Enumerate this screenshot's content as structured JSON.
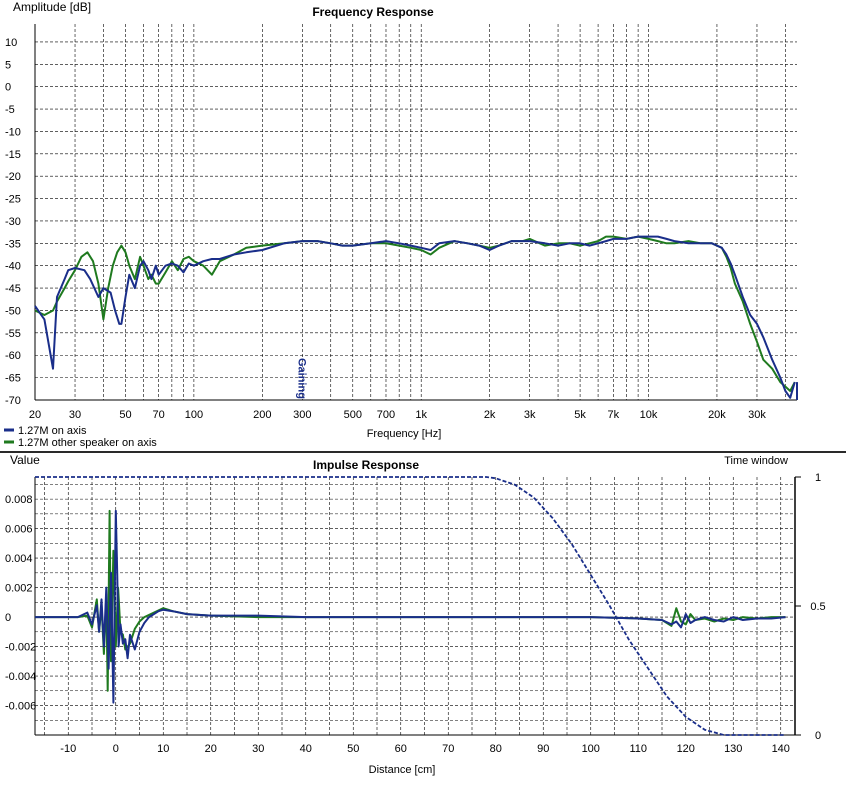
{
  "colors": {
    "series_a": "#1a2e8a",
    "series_b": "#1f7a1f",
    "grid": "#000000",
    "background": "#ffffff",
    "separator": "#2a2a2a"
  },
  "chart_data": [
    {
      "type": "line",
      "title": "Frequency Response",
      "ylabel": "Amplitude [dB]",
      "xlabel": "Frequency [Hz]",
      "x_scale": "log",
      "xlim": [
        20,
        45000
      ],
      "ylim": [
        -70,
        14
      ],
      "grid": true,
      "legend_position": "bottom-left",
      "y_ticks": [
        10,
        5,
        0,
        -5,
        -10,
        -15,
        -20,
        -25,
        -30,
        -35,
        -40,
        -45,
        -50,
        -55,
        -60,
        -65,
        -70
      ],
      "x_ticks": [
        {
          "value": 20,
          "label": "20"
        },
        {
          "value": 30,
          "label": "30"
        },
        {
          "value": 50,
          "label": "50"
        },
        {
          "value": 70,
          "label": "70"
        },
        {
          "value": 100,
          "label": "100"
        },
        {
          "value": 200,
          "label": "200"
        },
        {
          "value": 300,
          "label": "300"
        },
        {
          "value": 500,
          "label": "500"
        },
        {
          "value": 700,
          "label": "700"
        },
        {
          "value": 1000,
          "label": "1k"
        },
        {
          "value": 2000,
          "label": "2k"
        },
        {
          "value": 3000,
          "label": "3k"
        },
        {
          "value": 5000,
          "label": "5k"
        },
        {
          "value": 7000,
          "label": "7k"
        },
        {
          "value": 10000,
          "label": "10k"
        },
        {
          "value": 20000,
          "label": "20k"
        },
        {
          "value": 30000,
          "label": "30k"
        }
      ],
      "annotation": {
        "text": "Gaining",
        "x": 300,
        "y": -70
      },
      "series": [
        {
          "name": "1.27M on axis",
          "color_key": "series_a",
          "x": [
            20,
            22,
            24,
            25,
            27,
            28,
            30,
            33,
            35,
            38,
            40,
            43,
            45,
            47,
            48,
            50,
            52,
            55,
            58,
            60,
            63,
            65,
            68,
            70,
            75,
            80,
            85,
            90,
            95,
            100,
            110,
            120,
            130,
            150,
            170,
            200,
            250,
            300,
            350,
            400,
            450,
            500,
            600,
            700,
            800,
            900,
            1000,
            1100,
            1200,
            1400,
            1600,
            1800,
            2000,
            2200,
            2500,
            2800,
            3000,
            3500,
            4000,
            4500,
            5000,
            5500,
            6000,
            6500,
            7000,
            8000,
            9000,
            10000,
            11000,
            12000,
            13000,
            15000,
            17000,
            19000,
            20000,
            21000,
            22000,
            23000,
            24000,
            26000,
            28000,
            30000,
            32000,
            35000,
            38000,
            40000,
            42000,
            44000
          ],
          "y": [
            -49,
            -52,
            -63,
            -47,
            -43,
            -41,
            -40.5,
            -41,
            -43,
            -47,
            -45,
            -46,
            -50,
            -53,
            -53,
            -47,
            -42,
            -45,
            -40,
            -39,
            -41,
            -43,
            -40,
            -42,
            -40,
            -39.5,
            -40,
            -41.5,
            -39.5,
            -40,
            -39,
            -38.5,
            -38.5,
            -37.5,
            -37,
            -36.5,
            -35,
            -34.5,
            -34.5,
            -35,
            -35.5,
            -35.5,
            -35,
            -34.5,
            -35,
            -35.5,
            -36,
            -36.5,
            -35,
            -34.5,
            -35,
            -35.5,
            -36.5,
            -35.5,
            -34.5,
            -34.5,
            -34.5,
            -35,
            -35.5,
            -35,
            -35,
            -35.5,
            -35,
            -34.5,
            -34,
            -34,
            -33.5,
            -33.5,
            -33.5,
            -34,
            -34.5,
            -35,
            -35,
            -35,
            -35.5,
            -36,
            -37.5,
            -39.5,
            -42,
            -47,
            -51,
            -53,
            -56,
            -61,
            -65,
            -68,
            -69.5,
            -66
          ]
        },
        {
          "name": "1.27M other speaker on axis",
          "color_key": "series_b",
          "x": [
            20,
            22,
            24,
            25,
            27,
            28,
            30,
            32,
            34,
            36,
            38,
            40,
            42,
            44,
            46,
            48,
            50,
            52,
            55,
            58,
            60,
            63,
            65,
            68,
            70,
            75,
            80,
            85,
            90,
            95,
            100,
            110,
            120,
            130,
            150,
            170,
            200,
            250,
            300,
            350,
            400,
            450,
            500,
            600,
            700,
            800,
            900,
            1000,
            1100,
            1200,
            1400,
            1600,
            1800,
            2000,
            2200,
            2500,
            2800,
            3000,
            3500,
            4000,
            4500,
            5000,
            5500,
            6000,
            6500,
            7000,
            8000,
            9000,
            10000,
            11000,
            12000,
            13000,
            15000,
            17000,
            19000,
            20000,
            21000,
            22000,
            23000,
            24000,
            26000,
            28000,
            30000,
            32000,
            35000,
            38000,
            40000,
            42000,
            44000
          ],
          "y": [
            -50,
            -51,
            -50,
            -48,
            -45,
            -43.5,
            -41,
            -38,
            -37,
            -39,
            -44,
            -52,
            -45,
            -40,
            -37,
            -35.5,
            -37,
            -40,
            -43,
            -38,
            -40,
            -43,
            -42,
            -44,
            -44,
            -41.5,
            -39,
            -41,
            -38.5,
            -38,
            -39,
            -40,
            -42,
            -39,
            -37.5,
            -36,
            -35.5,
            -35,
            -34.5,
            -34.5,
            -35,
            -35.5,
            -35.5,
            -35,
            -35,
            -35.5,
            -36,
            -36.5,
            -37.5,
            -36,
            -34.5,
            -35,
            -35.5,
            -36,
            -35.5,
            -34.5,
            -34.5,
            -34,
            -35.5,
            -35,
            -35,
            -35.5,
            -35,
            -34.5,
            -33.5,
            -33.5,
            -34,
            -33.5,
            -34,
            -34.5,
            -35,
            -35,
            -34.5,
            -35,
            -35,
            -35.5,
            -36,
            -38,
            -40.5,
            -44,
            -48,
            -53,
            -57,
            -61,
            -63,
            -66,
            -67,
            -68,
            -66
          ]
        }
      ],
      "vertical_marker": {
        "x": 45000,
        "y_from": -70,
        "y_to": -66
      }
    },
    {
      "type": "line",
      "title": "Impulse Response",
      "ylabel": "Value",
      "xlabel": "Distance [cm]",
      "y2label": "Time window",
      "xlim": [
        -17,
        143
      ],
      "ylim": [
        -0.008,
        0.0095
      ],
      "y2lim": [
        0,
        1
      ],
      "grid": true,
      "x_ticks": [
        -10,
        0,
        10,
        20,
        30,
        40,
        50,
        60,
        70,
        80,
        90,
        100,
        110,
        120,
        130,
        140
      ],
      "y_ticks": [
        {
          "value": 0.008,
          "label": "0.008"
        },
        {
          "value": 0.006,
          "label": "0.006"
        },
        {
          "value": 0.004,
          "label": "0.004"
        },
        {
          "value": 0.002,
          "label": "0.002"
        },
        {
          "value": 0,
          "label": "0"
        },
        {
          "value": -0.002,
          "label": "-0.002"
        },
        {
          "value": -0.004,
          "label": "-0.004"
        },
        {
          "value": -0.006,
          "label": "-0.006"
        }
      ],
      "y2_ticks": [
        {
          "value": 1,
          "label": "1"
        },
        {
          "value": 0.5,
          "label": "0.5"
        },
        {
          "value": 0,
          "label": "0"
        }
      ],
      "window_series": {
        "style": "dashed",
        "x": [
          -17,
          0,
          78,
          80,
          84,
          88,
          92,
          96,
          100,
          104,
          108,
          112,
          116,
          120,
          124,
          128,
          141
        ],
        "y": [
          1,
          1,
          1,
          0.995,
          0.97,
          0.92,
          0.84,
          0.74,
          0.62,
          0.5,
          0.37,
          0.26,
          0.15,
          0.07,
          0.02,
          0,
          0
        ]
      },
      "series": [
        {
          "color_key": "series_a",
          "x": [
            -17,
            -12,
            -8,
            -6,
            -5,
            -4,
            -3.5,
            -3,
            -2.5,
            -2,
            -1.5,
            -1,
            -0.5,
            0,
            0.3,
            0.6,
            1,
            1.5,
            2,
            2.5,
            3,
            4,
            5,
            6,
            7,
            8,
            9,
            10,
            12,
            15,
            20,
            30,
            40,
            60,
            80,
            100,
            110,
            115,
            117,
            118,
            119,
            120,
            121,
            122,
            124,
            126,
            128,
            130,
            132,
            135,
            138,
            141
          ],
          "y": [
            0,
            0,
            0,
            0.0003,
            -0.0005,
            0.0008,
            -0.001,
            0.0012,
            -0.002,
            0.002,
            -0.0035,
            0.003,
            -0.0058,
            0.0072,
            0.003,
            -0.002,
            -0.0005,
            -0.0018,
            -0.0015,
            -0.0028,
            -0.0012,
            -0.0022,
            -0.001,
            -0.0004,
            0,
            0.0002,
            0.0004,
            0.0005,
            0.0004,
            0.0002,
            0.0001,
            0.0001,
            0,
            0,
            0,
            0,
            -0.0001,
            -0.0002,
            -0.0005,
            -0.0003,
            -0.0007,
            0.0002,
            -0.0004,
            -0.0002,
            0,
            -0.0002,
            -0.0003,
            0,
            -0.0002,
            -0.0001,
            -0.0001,
            0
          ]
        },
        {
          "color_key": "series_b",
          "x": [
            -17,
            -12,
            -8,
            -6,
            -5,
            -4,
            -3.5,
            -3,
            -2.5,
            -2,
            -1.7,
            -1.3,
            -1,
            -0.5,
            0,
            0.5,
            1,
            1.5,
            2,
            3,
            4,
            5,
            6,
            8,
            10,
            12,
            15,
            20,
            30,
            40,
            60,
            80,
            100,
            110,
            115,
            117,
            118,
            119,
            120,
            121,
            122,
            124,
            126,
            128,
            130,
            132,
            135,
            138,
            141
          ],
          "y": [
            0,
            0,
            0,
            0.0001,
            -0.0007,
            0.0012,
            -0.001,
            0.0008,
            -0.0025,
            0.0015,
            -0.005,
            0.0072,
            -0.003,
            0.0045,
            -0.002,
            0.002,
            -0.001,
            -0.0012,
            -0.0022,
            -0.0018,
            -0.0008,
            -0.0003,
            0,
            0.0003,
            0.0006,
            0.0004,
            0.0002,
            0.0001,
            0,
            0,
            0,
            0,
            0,
            -0.0001,
            -0.0002,
            -0.0006,
            0.0006,
            -0.0003,
            -0.0005,
            0.0002,
            -0.0002,
            -0.0001,
            -0.0003,
            -0.0001,
            -0.0002,
            0,
            -0.0001,
            0,
            0
          ]
        }
      ]
    }
  ]
}
